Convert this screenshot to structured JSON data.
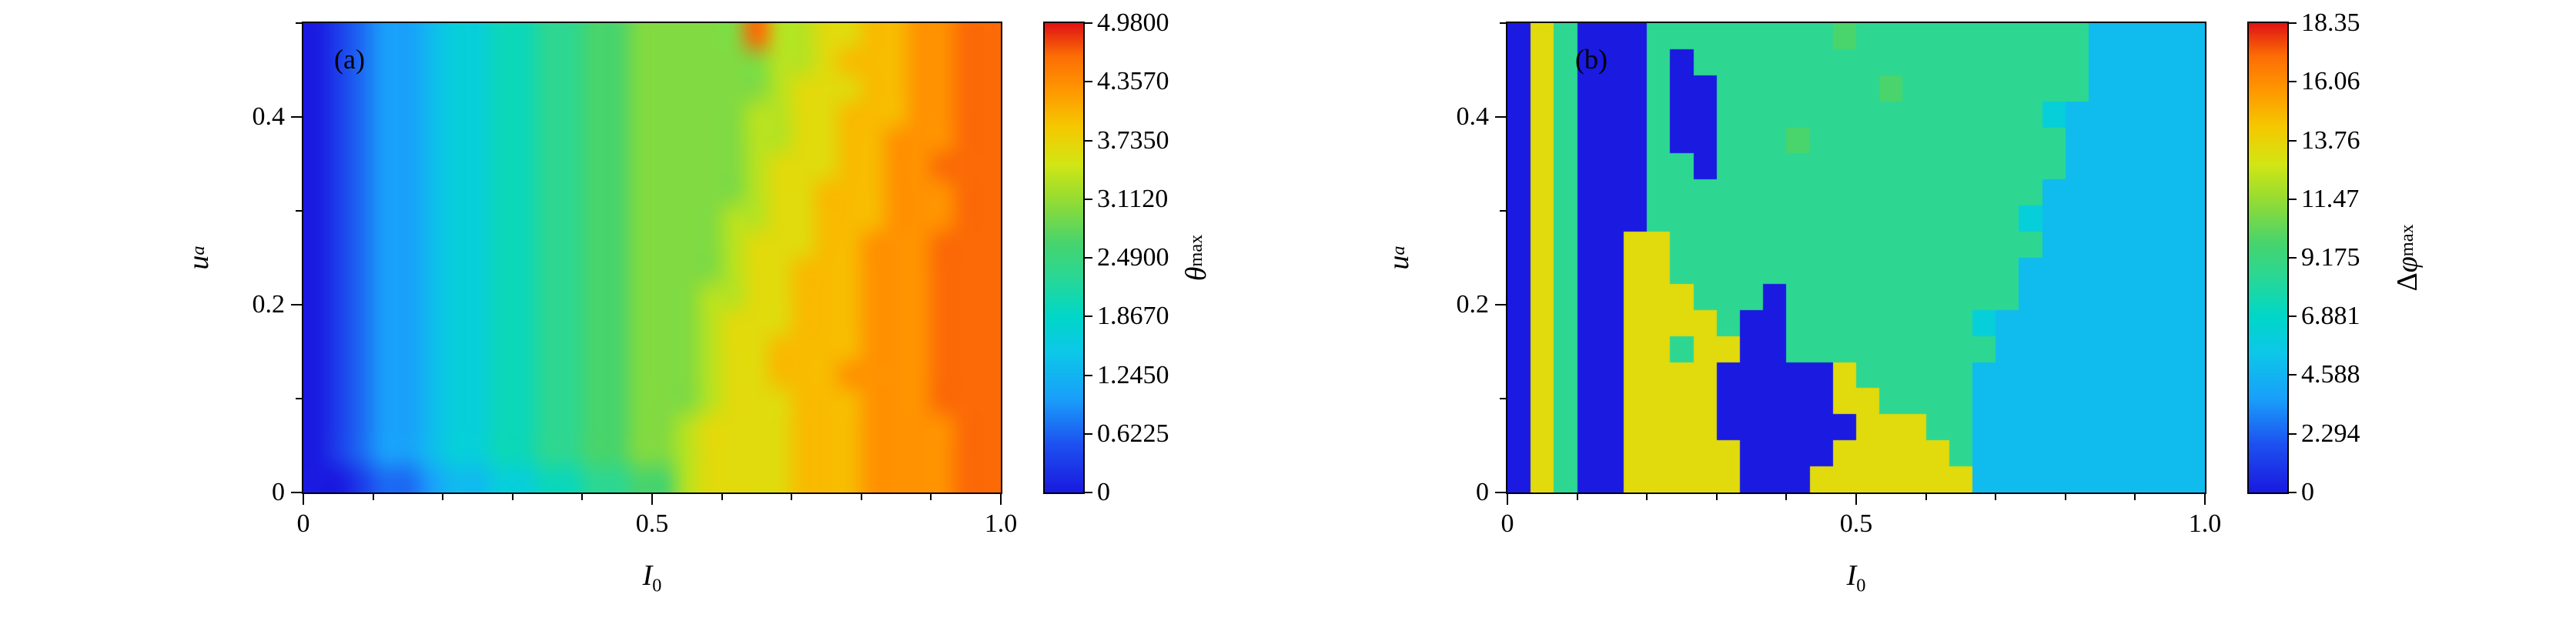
{
  "figure": {
    "background": "#ffffff"
  },
  "colormap": {
    "stops": [
      [
        0.0,
        "#1a1ae0"
      ],
      [
        0.1,
        "#1d50f0"
      ],
      [
        0.2,
        "#19a0fa"
      ],
      [
        0.3,
        "#0cc8e8"
      ],
      [
        0.375,
        "#00d7c8"
      ],
      [
        0.46,
        "#2ad795"
      ],
      [
        0.53,
        "#46d46e"
      ],
      [
        0.625,
        "#96dc32"
      ],
      [
        0.7,
        "#d2e614"
      ],
      [
        0.78,
        "#f5c800"
      ],
      [
        0.86,
        "#ff9600"
      ],
      [
        0.93,
        "#fc6e05"
      ],
      [
        1.0,
        "#e11414"
      ]
    ]
  },
  "panels": [
    {
      "label": "(a)",
      "x_axis": {
        "title_main": "I",
        "title_sub": "0",
        "range": [
          0,
          1
        ],
        "major_ticks": [
          {
            "v": 0,
            "t": "0"
          },
          {
            "v": 0.5,
            "t": "0.5"
          },
          {
            "v": 1,
            "t": "1.0"
          }
        ],
        "minor_ticks": [
          0.1,
          0.2,
          0.3,
          0.4,
          0.6,
          0.7,
          0.8,
          0.9
        ]
      },
      "y_axis": {
        "title_main": "u",
        "title_sub": "a",
        "range": [
          0,
          0.5
        ],
        "major_ticks": [
          {
            "v": 0,
            "t": "0"
          },
          {
            "v": 0.2,
            "t": "0.2"
          },
          {
            "v": 0.4,
            "t": "0.4"
          }
        ],
        "minor_ticks": [
          0.1,
          0.3,
          0.5
        ]
      },
      "colorbar": {
        "title_pre": "",
        "title_main": "θ",
        "title_sub": "max",
        "vmin": 0,
        "vmax": 4.98,
        "tick_labels": [
          {
            "v": 4.98,
            "t": "4.9800"
          },
          {
            "v": 4.357,
            "t": "4.3570"
          },
          {
            "v": 3.735,
            "t": "3.7350"
          },
          {
            "v": 3.112,
            "t": "3.1120"
          },
          {
            "v": 2.49,
            "t": "2.4900"
          },
          {
            "v": 1.867,
            "t": "1.8670"
          },
          {
            "v": 1.245,
            "t": "1.2450"
          },
          {
            "v": 0.6225,
            "t": "0.6225"
          },
          {
            "v": 0,
            "t": "0"
          }
        ]
      }
    },
    {
      "label": "(b)",
      "x_axis": {
        "title_main": "I",
        "title_sub": "0",
        "range": [
          0,
          1
        ],
        "major_ticks": [
          {
            "v": 0,
            "t": "0"
          },
          {
            "v": 0.5,
            "t": "0.5"
          },
          {
            "v": 1,
            "t": "1.0"
          }
        ],
        "minor_ticks": [
          0.1,
          0.2,
          0.3,
          0.4,
          0.6,
          0.7,
          0.8,
          0.9
        ]
      },
      "y_axis": {
        "title_main": "u",
        "title_sub": "a",
        "range": [
          0,
          0.5
        ],
        "major_ticks": [
          {
            "v": 0,
            "t": "0"
          },
          {
            "v": 0.2,
            "t": "0.2"
          },
          {
            "v": 0.4,
            "t": "0.4"
          }
        ],
        "minor_ticks": [
          0.1,
          0.3,
          0.5
        ]
      },
      "colorbar": {
        "title_pre": "Δ",
        "title_main": "φ",
        "title_sub": "max",
        "vmin": 0,
        "vmax": 18.35,
        "tick_labels": [
          {
            "v": 18.35,
            "t": "18.35"
          },
          {
            "v": 16.06,
            "t": "16.06"
          },
          {
            "v": 13.76,
            "t": "13.76"
          },
          {
            "v": 11.47,
            "t": "11.47"
          },
          {
            "v": 9.175,
            "t": "9.175"
          },
          {
            "v": 6.881,
            "t": "6.881"
          },
          {
            "v": 4.588,
            "t": "4.588"
          },
          {
            "v": 2.294,
            "t": "2.294"
          },
          {
            "v": 0,
            "t": "0"
          }
        ]
      }
    }
  ],
  "chart_data": [
    {
      "type": "heatmap",
      "panel_label": "(a)",
      "title": "theta_max vs I_0 and u_a",
      "xlabel": "I_0",
      "ylabel": "u_a",
      "zlabel": "theta_max",
      "x_range": [
        0,
        1
      ],
      "y_range": [
        0,
        0.5
      ],
      "z_range": [
        0,
        4.98
      ],
      "legend_position": "right-colorbar",
      "grid_encoding": "each char is a hex digit 0-f; z = digit/15 * 4.98; rows listed top (u_a=0.5) to bottom (u_a=0); columns left (I_0=0) to right (I_0=1)",
      "render": "smooth",
      "grid": [
        "0123345566778899999eaabbccddee",
        "01233455667788999999aabcccddee",
        "01233455667788999999abbbccddee",
        "0123345566778899999aabbcccddee",
        "0123345566778899999aabbccdddee",
        "0123345566778899999abbbccddeee",
        "0123345566778899999abbcccdddee",
        "012334556677889999aabbcccdddee",
        "012334556677889999abbbccdddeee",
        "012334556677889999abbcccdddeee",
        "01233455667788999aabbcccdddeee",
        "01233455667788999abbbcccdddeee",
        "01233455667788999abbccccdddeee",
        "01233455667788999abbcccddddeee",
        "01233455667788999abbbcccdddeee",
        "0123345566778899abbbbcccddddee",
        "0123345566778899abbbbcccddddee",
        "0012234455667788abbbbcccddddee"
      ]
    },
    {
      "type": "heatmap",
      "panel_label": "(b)",
      "title": "Delta_phi_max vs I_0 and u_a",
      "xlabel": "I_0",
      "ylabel": "u_a",
      "zlabel": "Delta_phi_max",
      "x_range": [
        0,
        1
      ],
      "y_range": [
        0,
        0.5
      ],
      "z_range": [
        0,
        18.35
      ],
      "legend_position": "right-colorbar",
      "grid_encoding": "each char is a hex digit 0-f; z = digit/15 * 18.35; rows listed top (u_a=0.5) to bottom (u_a=0); columns left (I_0=0) to right (I_0=1)",
      "render": "blocky",
      "grid": [
        "0b7000777777778777777777744444",
        "0b7000707777777777777777744444",
        "0b7000700777777787777777744444",
        "0b7000700777777777777775444444",
        "0b7000700777877777777777444444",
        "0b7000770777777777777777444444",
        "0b7000777777777777777774444444",
        "0b7000777777777777777754444444",
        "0b700bb77777777777777774444444",
        "0b700bb77777777777777744444444",
        "0b700bbb7770777777777744444444",
        "0b700bbbb700777777775444444444",
        "0b700bb7bb00777777777444444444",
        "0b700bbbb00000b777774444444444",
        "0b700bbbb00000bb77774444444444",
        "0b700bbbb000000bbb774444444444",
        "0b700bbbbb0000bbbbb74444444444",
        "0b700bbbbb000bbbbbbb4444444444"
      ]
    }
  ]
}
